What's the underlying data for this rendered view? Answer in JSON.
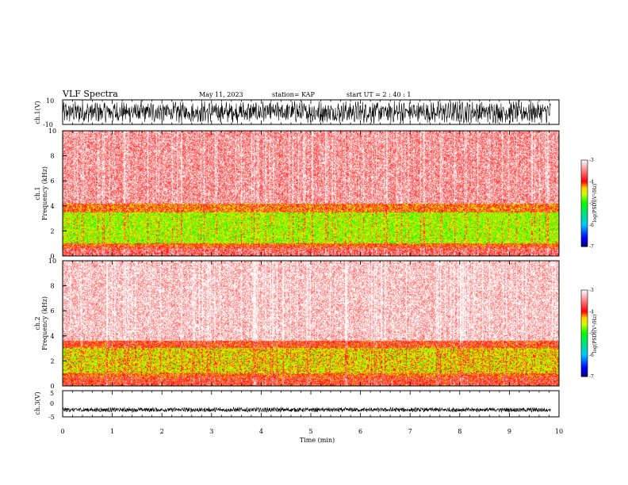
{
  "header": {
    "title": "VLF Spectra",
    "date": "May 11, 2023",
    "station": "station= KAP",
    "start": "start  UT =   2 : 40 : 1"
  },
  "chart_data": [
    {
      "type": "line",
      "name": "ch1-waveform",
      "ylabel": "ch.1(V)",
      "ylim": [
        -10,
        10
      ],
      "ytick_labels": [
        "10",
        "-10"
      ],
      "x_range_min": [
        0,
        9.83
      ],
      "amplitude_range_V": [
        -8,
        8
      ]
    },
    {
      "type": "heatmap",
      "name": "ch1-spectrogram",
      "ylabel_lines": [
        "ch.1",
        "Frequency (kHz)"
      ],
      "ylim": [
        0,
        10
      ],
      "yticks": [
        "0",
        "2",
        "4",
        "6",
        "8",
        "10"
      ],
      "bands": [
        {
          "freq_kHz": [
            0,
            0.6
          ],
          "log_psd": -3.6
        },
        {
          "freq_kHz": [
            0.6,
            1.0
          ],
          "log_psd": -4.0
        },
        {
          "freq_kHz": [
            1.0,
            3.5
          ],
          "log_psd": -4.6
        },
        {
          "freq_kHz": [
            3.5,
            4.2
          ],
          "log_psd": -4.1
        },
        {
          "freq_kHz": [
            4.2,
            10
          ],
          "log_psd": -3.4
        }
      ],
      "colorbar": {
        "label": "log(PSD)(V²/Hz)",
        "ticks": [
          "-3",
          "-4",
          "-5",
          "-6",
          "-7"
        ],
        "range": [
          -7,
          -3
        ]
      }
    },
    {
      "type": "heatmap",
      "name": "ch2-spectrogram",
      "ylabel_lines": [
        "ch.2",
        "Frequency (kHz)"
      ],
      "ylim": [
        0,
        10
      ],
      "yticks": [
        "0",
        "2",
        "4",
        "6",
        "8",
        "10"
      ],
      "bands": [
        {
          "freq_kHz": [
            0,
            0.6
          ],
          "log_psd": -3.8
        },
        {
          "freq_kHz": [
            0.6,
            1.0
          ],
          "log_psd": -4.0
        },
        {
          "freq_kHz": [
            1.0,
            3.0
          ],
          "log_psd": -4.4
        },
        {
          "freq_kHz": [
            3.0,
            3.6
          ],
          "log_psd": -3.9
        },
        {
          "freq_kHz": [
            3.6,
            10
          ],
          "log_psd": -3.2
        }
      ],
      "colorbar": {
        "label": "log(PSD)(V²/Hz)",
        "ticks": [
          "-3",
          "-4",
          "-5",
          "-6",
          "-7"
        ],
        "range": [
          -7,
          -3
        ]
      }
    },
    {
      "type": "line",
      "name": "ch3-waveform",
      "ylabel": "ch.3(V)",
      "ylim": [
        -5,
        5
      ],
      "ytick_labels": [
        "5",
        "0",
        "-5"
      ],
      "x_range_min": [
        0,
        9.83
      ],
      "amplitude_range_V": [
        -0.8,
        0.8
      ],
      "offset_V": -2.3
    }
  ],
  "xaxis": {
    "label": "Time (min)",
    "xlim": [
      0,
      10
    ],
    "ticks": [
      "0",
      "1",
      "2",
      "3",
      "4",
      "5",
      "6",
      "7",
      "8",
      "9",
      "10"
    ]
  },
  "colors": {
    "waveform": "#000000",
    "cmap": [
      "#000080",
      "#0000ff",
      "#00c8ff",
      "#00ff00",
      "#c8ff00",
      "#ffd700",
      "#ff0000",
      "#ffffff"
    ]
  }
}
